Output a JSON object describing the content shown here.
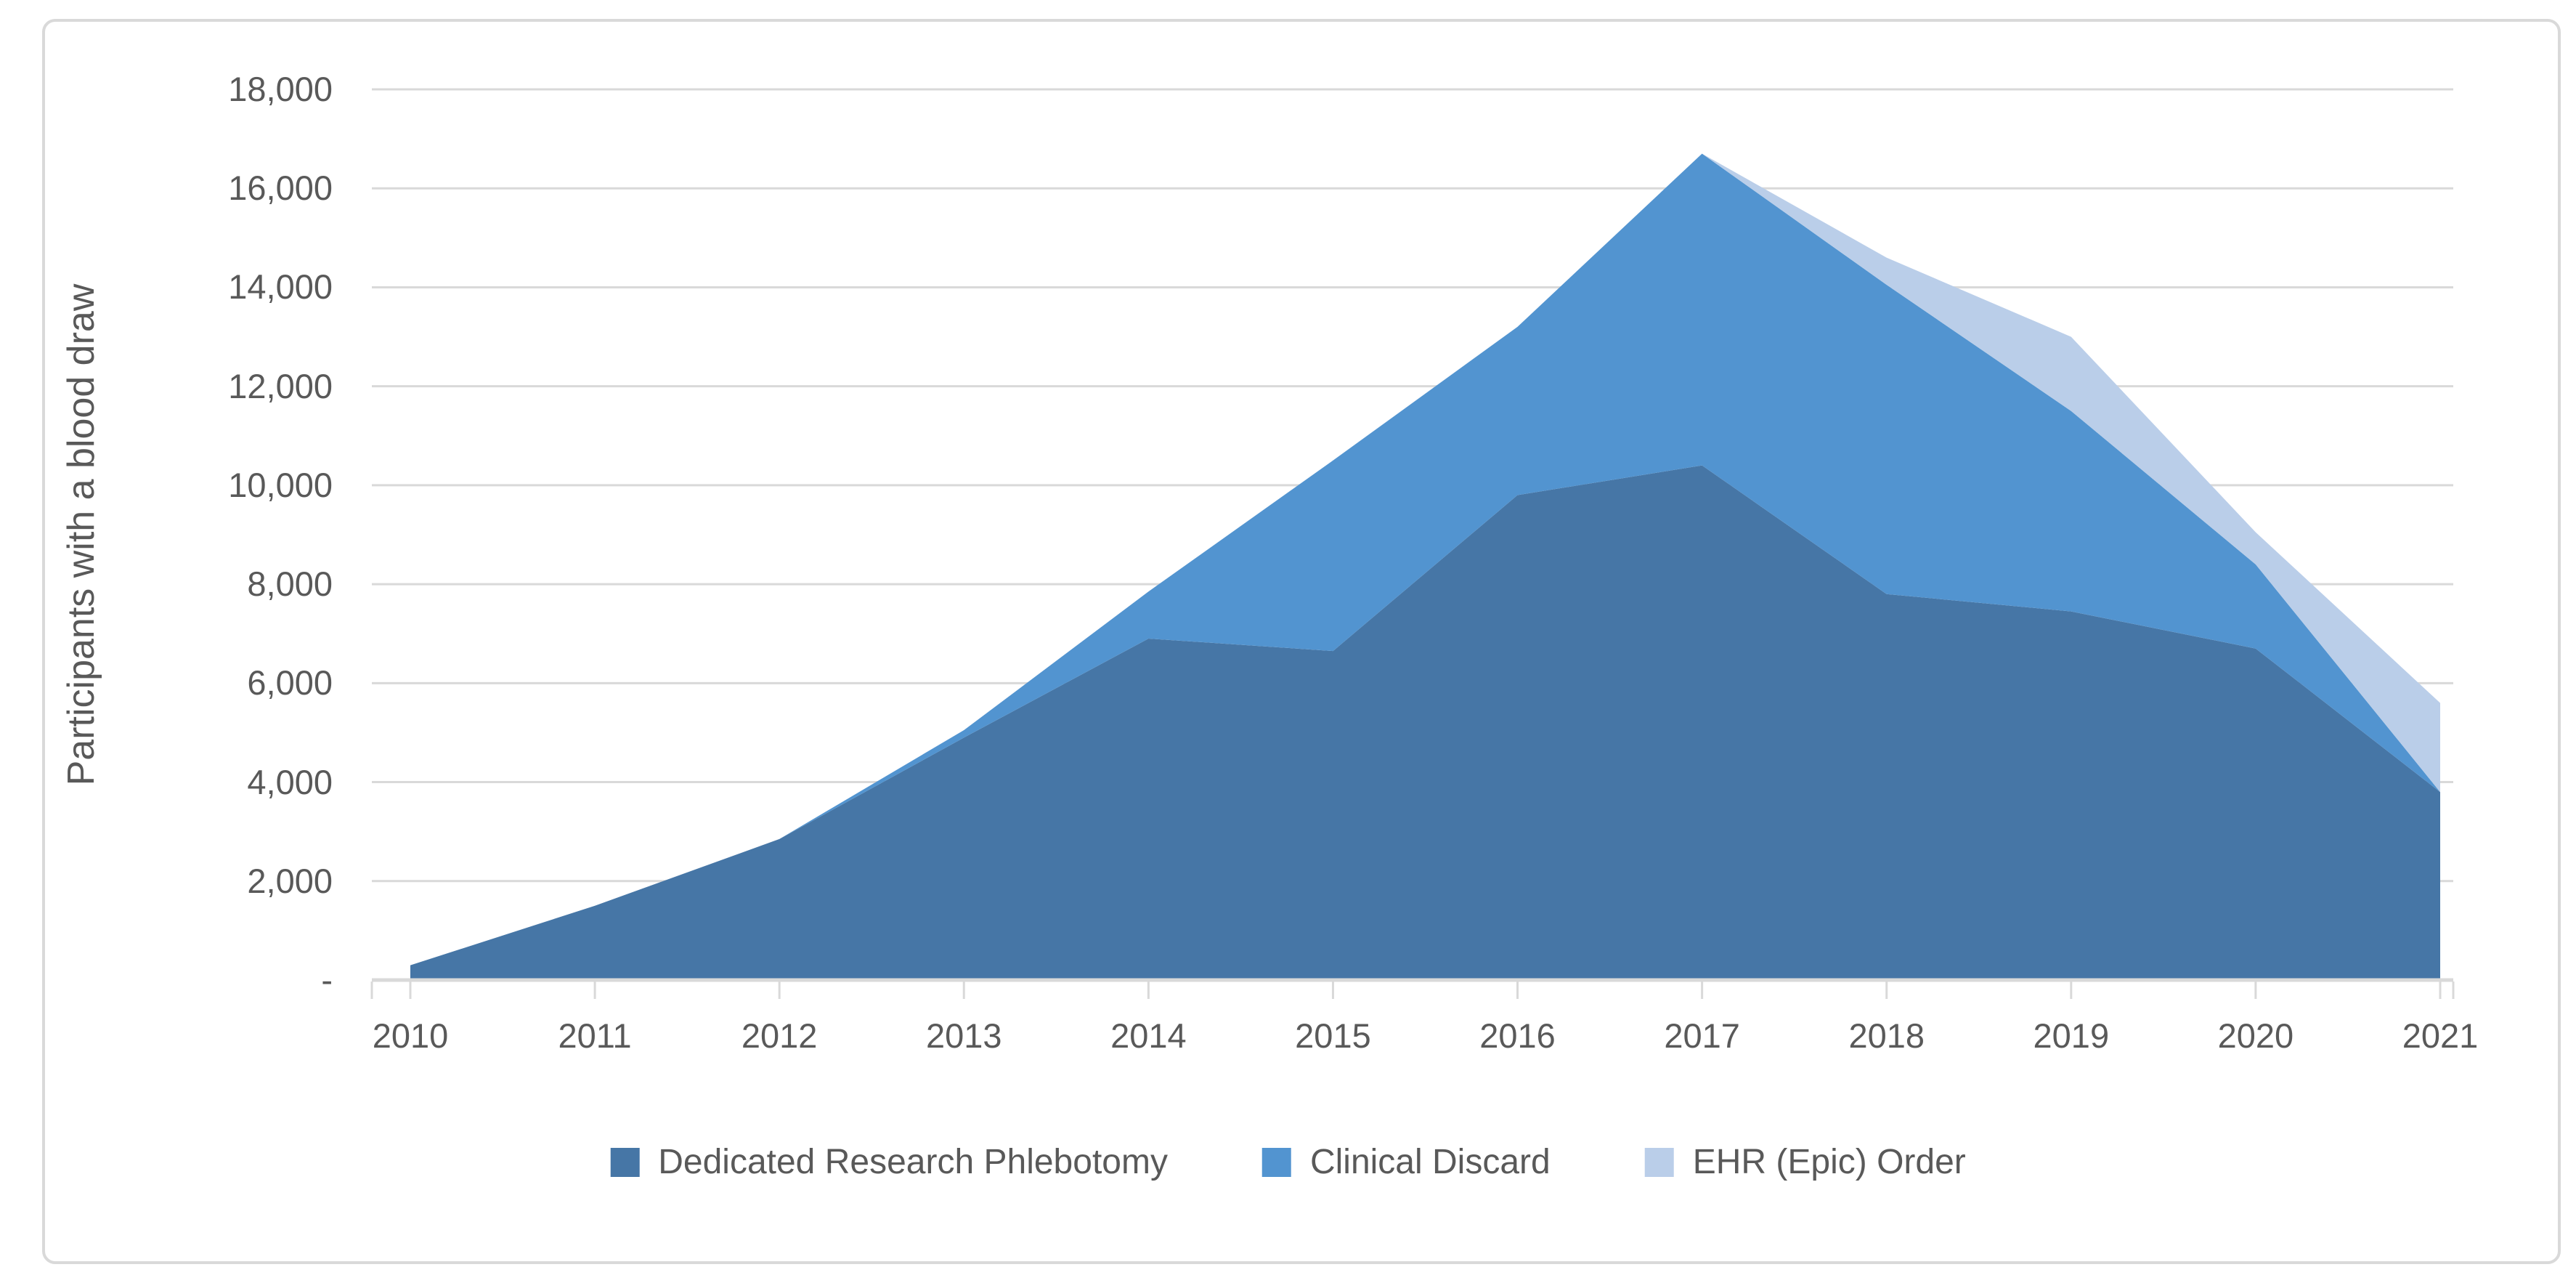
{
  "chart_data": {
    "type": "area",
    "stacked": true,
    "title": "",
    "xlabel": "",
    "ylabel": "Participants with a blood draw",
    "x": [
      2010,
      2011,
      2012,
      2013,
      2014,
      2015,
      2016,
      2017,
      2018,
      2019,
      2020,
      2021
    ],
    "series": [
      {
        "name": "Dedicated Research Phlebotomy",
        "color": "#4676A6",
        "values": [
          300,
          1500,
          2850,
          4900,
          6900,
          6650,
          9800,
          10400,
          7800,
          7450,
          6700,
          3800
        ]
      },
      {
        "name": "Clinical Discard",
        "color": "#5294D0",
        "values": [
          0,
          0,
          0,
          150,
          950,
          3850,
          3400,
          6300,
          6250,
          4050,
          1700,
          0
        ]
      },
      {
        "name": "EHR (Epic) Order",
        "color": "#BACEE9",
        "values": [
          0,
          0,
          0,
          0,
          0,
          0,
          0,
          0,
          550,
          1500,
          650,
          1800
        ]
      }
    ],
    "ylim": [
      0,
      18000
    ],
    "y_ticks": [
      0,
      2000,
      4000,
      6000,
      8000,
      10000,
      12000,
      14000,
      16000,
      18000
    ],
    "y_tick_labels": [
      "-",
      "2,000",
      "4,000",
      "6,000",
      "8,000",
      "10,000",
      "12,000",
      "14,000",
      "16,000",
      "18,000"
    ],
    "grid": "horizontal",
    "legend_position": "bottom",
    "gridline_color": "#D9D9D9",
    "axis_color": "#D9D9D9",
    "text_color": "#595959",
    "background_color": "#FFFFFF",
    "border_color": "#D9D9D9"
  }
}
